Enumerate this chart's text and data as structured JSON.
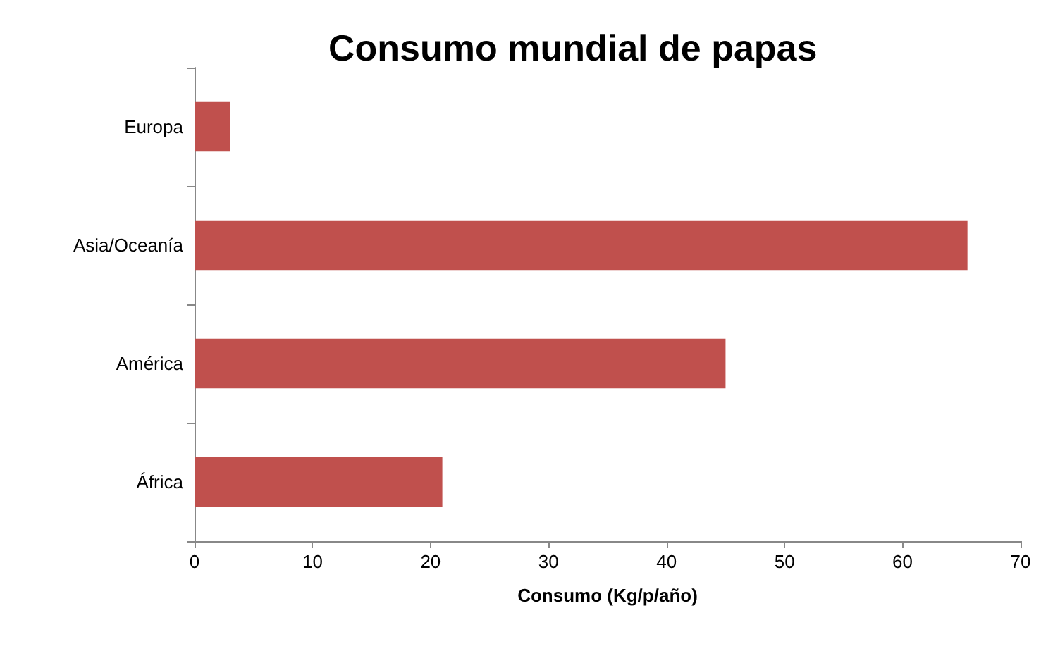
{
  "chart_data": {
    "type": "bar",
    "orientation": "horizontal",
    "title": "Consumo mundial de papas",
    "xlabel": "Consumo (Kg/p/año)",
    "categories": [
      "Europa",
      "Asia/Oceanía",
      "América",
      "África"
    ],
    "values": [
      3,
      65.5,
      45,
      21
    ],
    "color": "#c0504d",
    "xlim": [
      0,
      70
    ],
    "xticks": [
      0,
      10,
      20,
      30,
      40,
      50,
      60,
      70
    ],
    "grid": false
  }
}
